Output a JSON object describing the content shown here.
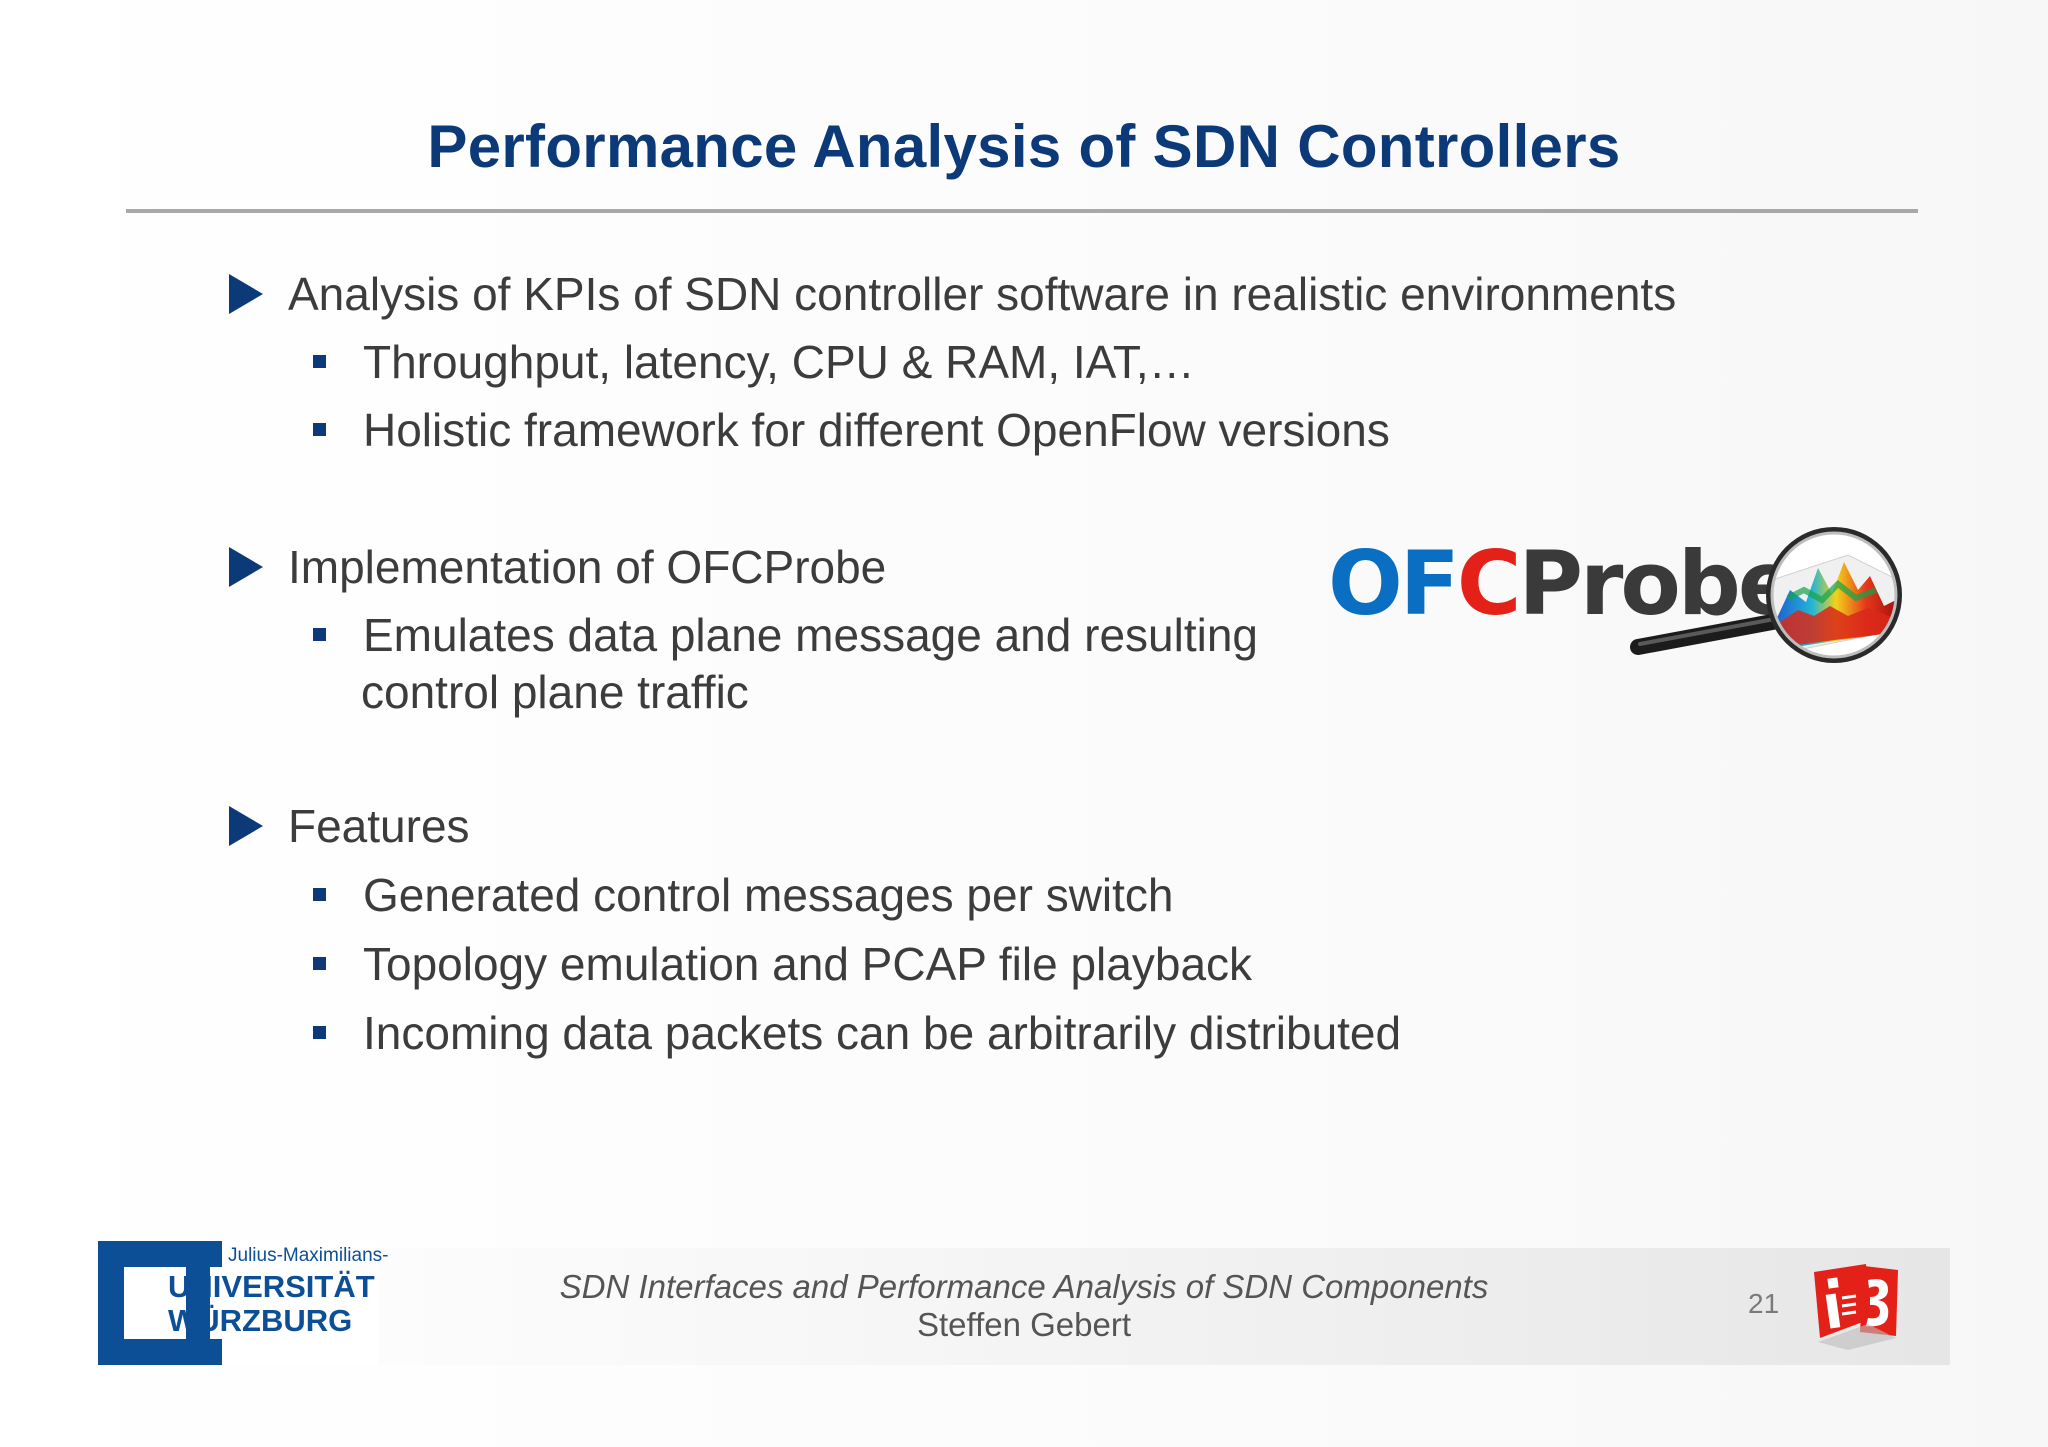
{
  "slide": {
    "title": "Performance Analysis of SDN Controllers",
    "sections": [
      {
        "heading": "Analysis of KPIs of SDN controller software in realistic environments",
        "items": [
          "Throughput, latency, CPU & RAM, IAT,…",
          "Holistic framework for different OpenFlow versions"
        ]
      },
      {
        "heading": "Implementation of OFCProbe",
        "items": [
          "Emulates data plane message and resulting",
          "control plane traffic"
        ]
      },
      {
        "heading": "Features",
        "items": [
          "Generated control messages per switch",
          "Topology emulation and PCAP file playback",
          "Incoming data packets can be arbitrarily distributed"
        ]
      }
    ]
  },
  "logo": {
    "part_blue": "OF",
    "part_red": "C",
    "part_dark": "Probe",
    "colors": {
      "blue": "#0a6fc2",
      "red": "#e32119",
      "dark": "#3a3a3a"
    }
  },
  "footer": {
    "title": "SDN Interfaces and Performance Analysis of SDN Components",
    "author": "Steffen Gebert",
    "page_number": "21",
    "university": {
      "line1": "Julius-Maximilians-",
      "line2": "UNIVERSITÄT",
      "line3": "WÜRZBURG"
    },
    "chair_logo": "i3"
  },
  "colors": {
    "accent": "#0c3a78",
    "text": "#3c3c3c",
    "rule": "#a8a8a8"
  }
}
